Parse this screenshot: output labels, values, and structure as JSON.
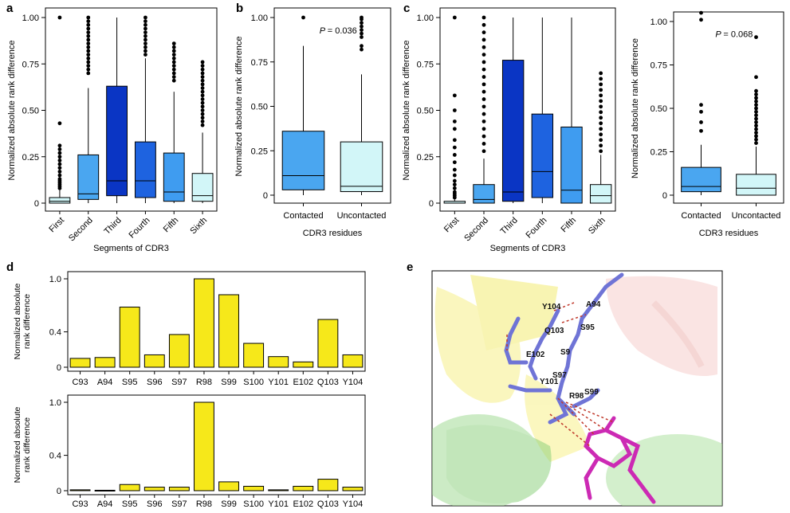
{
  "panel_letters": [
    "a",
    "b",
    "c",
    "d",
    "e"
  ],
  "chart_data": [
    {
      "id": "a",
      "type": "box",
      "xlabel": "Segments of CDR3",
      "ylabel": "Normalized absolute rank difference",
      "ylim": [
        0,
        1.0
      ],
      "yticks": [
        "0",
        "0.25",
        "0.50",
        "0.75",
        "1.00"
      ],
      "categories": [
        "First",
        "Second",
        "Third",
        "Fourth",
        "Fifth",
        "Sixth"
      ],
      "boxes": [
        {
          "min": 0,
          "q1": 0.0,
          "median": 0.01,
          "q3": 0.03,
          "max": 0.07,
          "outliers": [
            0.43,
            0.31,
            0.29,
            0.27,
            0.25,
            0.23,
            0.21,
            0.19,
            0.17,
            0.15,
            0.13,
            0.12,
            0.11,
            0.1,
            0.09,
            0.08,
            1.0
          ]
        },
        {
          "min": 0,
          "q1": 0.02,
          "median": 0.05,
          "q3": 0.26,
          "max": 0.62,
          "outliers": [
            0.7,
            0.72,
            0.74,
            0.76,
            0.78,
            0.8,
            0.82,
            0.84,
            0.86,
            0.88,
            0.9,
            0.92,
            0.94,
            0.96,
            0.98,
            1.0
          ]
        },
        {
          "min": 0,
          "q1": 0.04,
          "median": 0.12,
          "q3": 0.63,
          "max": 1.0,
          "outliers": []
        },
        {
          "min": 0,
          "q1": 0.03,
          "median": 0.12,
          "q3": 0.33,
          "max": 0.78,
          "outliers": [
            0.8,
            0.82,
            0.84,
            0.86,
            0.88,
            0.9,
            0.92,
            0.94,
            0.96,
            0.98,
            1.0
          ]
        },
        {
          "min": 0,
          "q1": 0.01,
          "median": 0.06,
          "q3": 0.27,
          "max": 0.6,
          "outliers": [
            0.66,
            0.68,
            0.7,
            0.72,
            0.74,
            0.76,
            0.78,
            0.8,
            0.82,
            0.84,
            0.86
          ]
        },
        {
          "min": 0,
          "q1": 0.01,
          "median": 0.04,
          "q3": 0.16,
          "max": 0.38,
          "outliers": [
            0.42,
            0.44,
            0.46,
            0.48,
            0.5,
            0.52,
            0.54,
            0.56,
            0.58,
            0.6,
            0.62,
            0.64,
            0.66,
            0.68,
            0.7,
            0.72,
            0.74,
            0.76
          ]
        }
      ],
      "colors": [
        "#d2f6f8",
        "#4aa6f0",
        "#0a35c4",
        "#1e63e0",
        "#3f9cf0",
        "#d2f6f8"
      ]
    },
    {
      "id": "b",
      "type": "box",
      "xlabel": "CDR3 residues",
      "ylabel": "Normalized absolute rank difference",
      "ylim": [
        0,
        1.0
      ],
      "yticks": [
        "0",
        "0.25",
        "0.50",
        "0.75",
        "1.00"
      ],
      "categories": [
        "Contacted",
        "Uncontacted"
      ],
      "annotation": {
        "p_label": "P",
        "p_value": "= 0.036"
      },
      "boxes": [
        {
          "min": 0,
          "q1": 0.03,
          "median": 0.11,
          "q3": 0.36,
          "max": 0.84,
          "outliers": [
            1.0
          ]
        },
        {
          "min": 0,
          "q1": 0.02,
          "median": 0.05,
          "q3": 0.3,
          "max": 0.68,
          "outliers": [
            1.0,
            0.99,
            0.97,
            0.95,
            0.93,
            0.91,
            0.89,
            0.84,
            0.82
          ]
        }
      ],
      "colors": [
        "#4aa6f0",
        "#d2f6f8"
      ]
    },
    {
      "id": "c",
      "type": "box",
      "xlabel": "Segments of CDR3",
      "ylabel": "Normalized absolute rank difference",
      "ylim": [
        0,
        1.0
      ],
      "yticks": [
        "0",
        "0.25",
        "0.50",
        "0.75",
        "1.00"
      ],
      "categories": [
        "First",
        "Second",
        "Third",
        "Fourth",
        "Fifth",
        "Sixth"
      ],
      "boxes": [
        {
          "min": 0,
          "q1": 0.0,
          "median": 0.0,
          "q3": 0.01,
          "max": 0.02,
          "outliers": [
            0.58,
            0.5,
            0.44,
            0.4,
            0.34,
            0.3,
            0.26,
            0.22,
            0.18,
            0.15,
            0.12,
            0.1,
            0.08,
            0.06,
            0.05,
            0.04,
            0.03,
            1.0
          ]
        },
        {
          "min": 0,
          "q1": 0.0,
          "median": 0.02,
          "q3": 0.1,
          "max": 0.24,
          "outliers": [
            0.28,
            0.32,
            0.36,
            0.4,
            0.44,
            0.48,
            0.52,
            0.56,
            0.6,
            0.64,
            0.68,
            0.72,
            0.76,
            0.8,
            0.84,
            0.88,
            0.92,
            0.96,
            1.0
          ]
        },
        {
          "min": 0,
          "q1": 0.01,
          "median": 0.06,
          "q3": 0.77,
          "max": 1.0,
          "outliers": []
        },
        {
          "min": 0,
          "q1": 0.03,
          "median": 0.17,
          "q3": 0.48,
          "max": 1.0,
          "outliers": []
        },
        {
          "min": 0,
          "q1": 0.0,
          "median": 0.07,
          "q3": 0.41,
          "max": 1.0,
          "outliers": []
        },
        {
          "min": 0,
          "q1": 0.0,
          "median": 0.04,
          "q3": 0.1,
          "max": 0.26,
          "outliers": [
            0.28,
            0.31,
            0.34,
            0.37,
            0.4,
            0.43,
            0.46,
            0.49,
            0.52,
            0.55,
            0.58,
            0.61,
            0.64,
            0.67,
            0.7
          ]
        }
      ],
      "colors": [
        "#d2f6f8",
        "#4aa6f0",
        "#0a35c4",
        "#1e63e0",
        "#3f9cf0",
        "#d2f6f8"
      ]
    },
    {
      "id": "c-right",
      "type": "box",
      "xlabel": "CDR3 residues",
      "ylabel": "Normalized absolute rank difference",
      "ylim": [
        0,
        1.0
      ],
      "yticks": [
        "0",
        "0.25",
        "0.50",
        "0.75",
        "1.00"
      ],
      "categories": [
        "Contacted",
        "Uncontacted"
      ],
      "annotation": {
        "p_label": "P",
        "p_value": "= 0.068"
      },
      "boxes": [
        {
          "min": 0,
          "q1": 0.02,
          "median": 0.05,
          "q3": 0.16,
          "max": 0.29,
          "outliers": [
            1.05,
            1.01,
            0.52,
            0.48,
            0.42,
            0.37
          ]
        },
        {
          "min": 0,
          "q1": 0.0,
          "median": 0.04,
          "q3": 0.12,
          "max": 0.28,
          "outliers": [
            0.3,
            0.32,
            0.34,
            0.36,
            0.38,
            0.4,
            0.42,
            0.44,
            0.46,
            0.48,
            0.5,
            0.52,
            0.54,
            0.56,
            0.58,
            0.6,
            0.68,
            0.91
          ]
        }
      ],
      "colors": [
        "#4aa6f0",
        "#d2f6f8"
      ]
    },
    {
      "id": "d-top",
      "type": "bar",
      "ylabel_line1": "Normalized absolute",
      "ylabel_line2": "rank difference",
      "ylim": [
        0,
        1.0
      ],
      "yticks": [
        "0",
        "0.4",
        "1.0"
      ],
      "categories": [
        "C93",
        "A94",
        "S95",
        "S96",
        "S97",
        "R98",
        "S99",
        "S100",
        "Y101",
        "E102",
        "Q103",
        "Y104"
      ],
      "values": [
        0.1,
        0.11,
        0.68,
        0.14,
        0.37,
        1.0,
        0.82,
        0.27,
        0.12,
        0.06,
        0.54,
        0.14
      ],
      "color": "#f6e81a"
    },
    {
      "id": "d-bottom",
      "type": "bar",
      "ylabel_line1": "Normalized absolute",
      "ylabel_line2": "rank difference",
      "ylim": [
        0,
        1.0
      ],
      "yticks": [
        "0",
        "0.4",
        "1.0"
      ],
      "categories": [
        "C93",
        "A94",
        "S95",
        "S96",
        "S97",
        "R98",
        "S99",
        "S100",
        "Y101",
        "E102",
        "Q103",
        "Y104"
      ],
      "values": [
        0.01,
        0.005,
        0.07,
        0.04,
        0.04,
        1.0,
        0.1,
        0.05,
        0.01,
        0.05,
        0.13,
        0.04
      ],
      "color": "#f6e81a"
    }
  ],
  "structure_labels": [
    "Y104",
    "A94",
    "Q103",
    "S95",
    "E102",
    "S9",
    "S97",
    "Y101",
    "S99",
    "R98"
  ]
}
